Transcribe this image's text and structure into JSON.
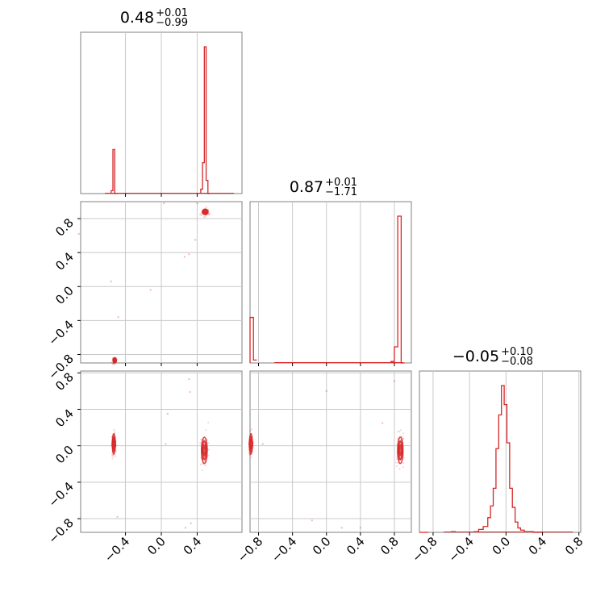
{
  "chart_data": {
    "type": "corner",
    "color": "#d62728",
    "grid": true,
    "parameters": [
      {
        "title_value": "0.48",
        "err_plus": "+0.01",
        "err_minus": "−0.99",
        "range": [
          -0.9,
          0.9
        ]
      },
      {
        "title_value": "0.87",
        "err_plus": "+0.01",
        "err_minus": "−1.71",
        "range": [
          -0.9,
          1.0
        ]
      },
      {
        "title_value": "−0.05",
        "err_plus": "+0.10",
        "err_minus": "−0.08",
        "range": [
          -0.95,
          0.82
        ]
      }
    ],
    "tick_labels": {
      "p0": [
        "−0.4",
        "0.0",
        "0.4"
      ],
      "p1": [
        "−0.8",
        "−0.4",
        "0.0",
        "0.4",
        "0.8"
      ],
      "p2": [
        "−0.8",
        "−0.4",
        "0.0",
        "0.4",
        "0.8"
      ]
    },
    "tick_values": {
      "p0": [
        -0.4,
        0.0,
        0.4
      ],
      "p1": [
        -0.8,
        -0.4,
        0.0,
        0.4,
        0.8
      ],
      "p2": [
        -0.8,
        -0.4,
        0.0,
        0.4,
        0.8
      ]
    },
    "histograms": [
      {
        "param": 0,
        "bin_edges": [
          -0.68,
          -0.66,
          -0.64,
          -0.62,
          -0.6,
          -0.58,
          -0.56,
          -0.54,
          -0.52,
          -0.5,
          -0.48,
          0.38,
          0.4,
          0.42,
          0.44,
          0.46,
          0.48,
          0.5,
          0.52,
          0.54,
          0.56
        ],
        "counts_note": "relative heights",
        "bins": [
          {
            "x0": -0.56,
            "x1": -0.54,
            "h": 0.02
          },
          {
            "x0": -0.54,
            "x1": -0.52,
            "h": 0.3
          },
          {
            "x0": -0.52,
            "x1": -0.5,
            "h": 0.0
          },
          {
            "x0": 0.44,
            "x1": 0.46,
            "h": 0.03
          },
          {
            "x0": 0.46,
            "x1": 0.48,
            "h": 0.21
          },
          {
            "x0": 0.48,
            "x1": 0.5,
            "h": 1.0
          },
          {
            "x0": 0.5,
            "x1": 0.52,
            "h": 0.09
          },
          {
            "x0": 0.52,
            "x1": 0.54,
            "h": 0.0
          }
        ]
      },
      {
        "param": 1,
        "bins": [
          {
            "x0": -0.9,
            "x1": -0.86,
            "h": 0.31
          },
          {
            "x0": -0.86,
            "x1": -0.82,
            "h": 0.02
          },
          {
            "x0": 0.76,
            "x1": 0.8,
            "h": 0.01
          },
          {
            "x0": 0.8,
            "x1": 0.84,
            "h": 0.11
          },
          {
            "x0": 0.84,
            "x1": 0.88,
            "h": 1.0
          },
          {
            "x0": 0.88,
            "x1": 0.92,
            "h": 0.0
          }
        ]
      },
      {
        "param": 2,
        "bins": [
          {
            "x0": -0.95,
            "x1": -0.85,
            "h": 0.0
          },
          {
            "x0": -0.6,
            "x1": -0.55,
            "h": 0.005
          },
          {
            "x0": -0.35,
            "x1": -0.3,
            "h": 0.005
          },
          {
            "x0": -0.3,
            "x1": -0.25,
            "h": 0.02
          },
          {
            "x0": -0.25,
            "x1": -0.2,
            "h": 0.04
          },
          {
            "x0": -0.2,
            "x1": -0.17,
            "h": 0.1
          },
          {
            "x0": -0.17,
            "x1": -0.14,
            "h": 0.18
          },
          {
            "x0": -0.14,
            "x1": -0.11,
            "h": 0.3
          },
          {
            "x0": -0.11,
            "x1": -0.08,
            "h": 0.57
          },
          {
            "x0": -0.08,
            "x1": -0.05,
            "h": 0.8
          },
          {
            "x0": -0.05,
            "x1": -0.02,
            "h": 1.0
          },
          {
            "x0": -0.02,
            "x1": 0.01,
            "h": 0.87
          },
          {
            "x0": 0.01,
            "x1": 0.04,
            "h": 0.61
          },
          {
            "x0": 0.04,
            "x1": 0.07,
            "h": 0.3
          },
          {
            "x0": 0.07,
            "x1": 0.1,
            "h": 0.17
          },
          {
            "x0": 0.1,
            "x1": 0.13,
            "h": 0.07
          },
          {
            "x0": 0.13,
            "x1": 0.16,
            "h": 0.03
          },
          {
            "x0": 0.16,
            "x1": 0.2,
            "h": 0.015
          },
          {
            "x0": 0.2,
            "x1": 0.3,
            "h": 0.005
          },
          {
            "x0": 0.3,
            "x1": 0.4,
            "h": 0.0
          }
        ]
      }
    ],
    "joint_modes": [
      {
        "panel": "p1_vs_p0",
        "x": 0.49,
        "y": 0.88,
        "sx": 0.02,
        "sy": 0.02
      },
      {
        "panel": "p1_vs_p0",
        "x": -0.52,
        "y": -0.87,
        "sx": 0.01,
        "sy": 0.02
      },
      {
        "panel": "p2_vs_p0",
        "x": 0.48,
        "y": -0.05,
        "sx": 0.02,
        "sy": 0.09
      },
      {
        "panel": "p2_vs_p0",
        "x": -0.53,
        "y": 0.02,
        "sx": 0.01,
        "sy": 0.07
      },
      {
        "panel": "p2_vs_p1",
        "x": 0.87,
        "y": -0.05,
        "sx": 0.02,
        "sy": 0.09
      },
      {
        "panel": "p2_vs_p1",
        "x": -0.89,
        "y": 0.02,
        "sx": 0.01,
        "sy": 0.07
      }
    ],
    "outliers": [
      {
        "panel": "p1_vs_p0",
        "x": 0.03,
        "y": 0.98
      },
      {
        "panel": "p1_vs_p0",
        "x": 0.26,
        "y": 0.35
      },
      {
        "panel": "p1_vs_p0",
        "x": 0.31,
        "y": 0.38
      },
      {
        "panel": "p1_vs_p0",
        "x": -0.56,
        "y": 0.06
      },
      {
        "panel": "p1_vs_p0",
        "x": -0.48,
        "y": -0.36
      },
      {
        "panel": "p1_vs_p0",
        "x": -0.12,
        "y": -0.04
      },
      {
        "panel": "p1_vs_p0",
        "x": 0.38,
        "y": 0.55
      },
      {
        "panel": "p1_vs_p0",
        "x": 0.4,
        "y": 0.98
      },
      {
        "panel": "p1_vs_p0",
        "x": -0.92,
        "y": 0.62
      },
      {
        "panel": "p2_vs_p0",
        "x": 0.31,
        "y": 0.73
      },
      {
        "panel": "p2_vs_p0",
        "x": 0.07,
        "y": 0.35
      },
      {
        "panel": "p2_vs_p0",
        "x": 0.05,
        "y": 0.02
      },
      {
        "panel": "p2_vs_p0",
        "x": 0.33,
        "y": -0.85
      },
      {
        "panel": "p2_vs_p0",
        "x": 0.27,
        "y": -0.9
      },
      {
        "panel": "p2_vs_p0",
        "x": -0.49,
        "y": -0.78
      },
      {
        "panel": "p2_vs_p0",
        "x": 0.32,
        "y": 0.59
      },
      {
        "panel": "p2_vs_p1",
        "x": -0.75,
        "y": 0.02
      },
      {
        "panel": "p2_vs_p1",
        "x": 0.8,
        "y": 0.71
      },
      {
        "panel": "p2_vs_p1",
        "x": 0.66,
        "y": 0.25
      },
      {
        "panel": "p2_vs_p1",
        "x": 0.0,
        "y": 0.6
      },
      {
        "panel": "p2_vs_p1",
        "x": 0.4,
        "y": -0.9
      },
      {
        "panel": "p2_vs_p1",
        "x": 0.18,
        "y": -0.9
      },
      {
        "panel": "p2_vs_p1",
        "x": -0.17,
        "y": -0.82
      }
    ]
  }
}
